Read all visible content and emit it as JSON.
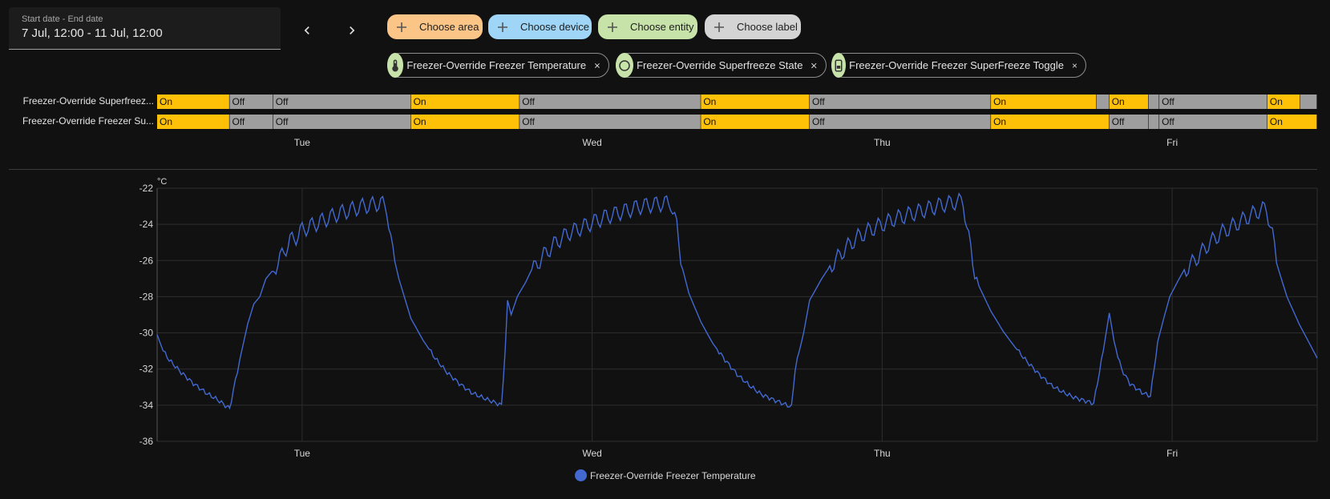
{
  "date_range": {
    "label": "Start date - End date",
    "value": "7 Jul, 12:00 - 11 Jul, 12:00"
  },
  "nav": {
    "prev_icon": "chevron-left-icon",
    "next_icon": "chevron-right-icon"
  },
  "target_chips": [
    {
      "label": "Choose area",
      "color": "#fbc588",
      "icon": "plus-icon"
    },
    {
      "label": "Choose device",
      "color": "#9fd5f7",
      "icon": "plus-icon"
    },
    {
      "label": "Choose entity",
      "color": "#c7e3a9",
      "icon": "plus-icon"
    },
    {
      "label": "Choose label",
      "color": "#d4d4d4",
      "icon": "plus-icon"
    }
  ],
  "entity_chips": [
    {
      "label": "Freezer-Override Freezer Temperature",
      "icon": "thermometer-icon"
    },
    {
      "label": "Freezer-Override Superfreeze State",
      "icon": "circle-outline-icon"
    },
    {
      "label": "Freezer-Override Freezer SuperFreeze Toggle",
      "icon": "phone-icon"
    }
  ],
  "colors": {
    "on": "#ffc107",
    "off": "#9e9e9e",
    "line": "#4369d1",
    "grid": "#2e2e2e"
  },
  "timeline": {
    "rows": [
      {
        "label": "Freezer-Override Superfreez...",
        "segments": [
          {
            "state": "On",
            "start": 0.0,
            "end": 0.0625
          },
          {
            "state": "Off",
            "start": 0.0625,
            "end": 0.1
          },
          {
            "state": "Off",
            "start": 0.1,
            "end": 0.2188
          },
          {
            "state": "On",
            "start": 0.2188,
            "end": 0.3125
          },
          {
            "state": "Off",
            "start": 0.3125,
            "end": 0.4688
          },
          {
            "state": "On",
            "start": 0.4688,
            "end": 0.5625
          },
          {
            "state": "Off",
            "start": 0.5625,
            "end": 0.7188
          },
          {
            "state": "On",
            "start": 0.7188,
            "end": 0.8098
          },
          {
            "state": "",
            "start": 0.8098,
            "end": 0.8208
          },
          {
            "state": "On",
            "start": 0.8208,
            "end": 0.8546
          },
          {
            "state": "",
            "start": 0.8546,
            "end": 0.8639
          },
          {
            "state": "Off",
            "start": 0.8639,
            "end": 0.9571
          },
          {
            "state": "On",
            "start": 0.9571,
            "end": 0.9854
          },
          {
            "state": "",
            "start": 0.9854,
            "end": 1.0
          }
        ]
      },
      {
        "label": "Freezer-Override Freezer Su...",
        "segments": [
          {
            "state": "On",
            "start": 0.0,
            "end": 0.0625
          },
          {
            "state": "Off",
            "start": 0.0625,
            "end": 0.1
          },
          {
            "state": "Off",
            "start": 0.1,
            "end": 0.2188
          },
          {
            "state": "On",
            "start": 0.2188,
            "end": 0.3125
          },
          {
            "state": "Off",
            "start": 0.3125,
            "end": 0.4688
          },
          {
            "state": "On",
            "start": 0.4688,
            "end": 0.5625
          },
          {
            "state": "Off",
            "start": 0.5625,
            "end": 0.7188
          },
          {
            "state": "On",
            "start": 0.7188,
            "end": 0.8208
          },
          {
            "state": "Off",
            "start": 0.8208,
            "end": 0.8546
          },
          {
            "state": "",
            "start": 0.8546,
            "end": 0.8639
          },
          {
            "state": "Off",
            "start": 0.8639,
            "end": 0.9571
          },
          {
            "state": "On",
            "start": 0.9571,
            "end": 1.0
          }
        ]
      }
    ],
    "ticks": [
      {
        "label": "Tue",
        "t": 0.125
      },
      {
        "label": "Wed",
        "t": 0.375
      },
      {
        "label": "Thu",
        "t": 0.625
      },
      {
        "label": "Fri",
        "t": 0.875
      }
    ]
  },
  "chart_data": {
    "type": "line",
    "title": "",
    "unit": "°C",
    "ylim": [
      -36,
      -22
    ],
    "yticks": [
      -22,
      -24,
      -26,
      -28,
      -30,
      -32,
      -34,
      -36
    ],
    "xlim": [
      0,
      96
    ],
    "x_unit": "hours since 7 Jul 12:00",
    "xticks": [
      {
        "label": "Tue",
        "x": 12
      },
      {
        "label": "Wed",
        "x": 36
      },
      {
        "label": "Thu",
        "x": 60
      },
      {
        "label": "Fri",
        "x": 84
      }
    ],
    "grid": true,
    "legend_position": "bottom",
    "series": [
      {
        "name": "Freezer-Override Freezer Temperature",
        "color": "#4369d1",
        "points": [
          [
            0,
            -30.1
          ],
          [
            0.5,
            -31.0
          ],
          [
            1,
            -31.5
          ],
          [
            2,
            -32.2
          ],
          [
            3,
            -32.8
          ],
          [
            4,
            -33.3
          ],
          [
            5,
            -33.7
          ],
          [
            5.8,
            -34.1
          ],
          [
            6.0,
            -34.2
          ],
          [
            6.3,
            -33.2
          ],
          [
            7,
            -31.0
          ],
          [
            7.5,
            -29.5
          ],
          [
            8,
            -28.4
          ],
          [
            8.5,
            -28.0
          ],
          [
            9,
            -27.0
          ],
          [
            9.5,
            -26.6
          ],
          [
            10,
            -26.0
          ],
          [
            10.5,
            -25.4
          ],
          [
            11,
            -24.8
          ],
          [
            11.5,
            -24.6
          ],
          [
            12,
            -24.2
          ],
          [
            13,
            -23.9
          ],
          [
            14,
            -23.6
          ],
          [
            15,
            -23.3
          ],
          [
            16,
            -23.1
          ],
          [
            17,
            -22.9
          ],
          [
            18,
            -22.8
          ],
          [
            18.5,
            -22.7
          ],
          [
            19,
            -23.0
          ],
          [
            19.5,
            -25.5
          ],
          [
            20,
            -27.0
          ],
          [
            21,
            -29.2
          ],
          [
            22,
            -30.4
          ],
          [
            23,
            -31.4
          ],
          [
            24,
            -32.2
          ],
          [
            25,
            -32.8
          ],
          [
            26,
            -33.3
          ],
          [
            27,
            -33.6
          ],
          [
            28.5,
            -34.0
          ],
          [
            28.8,
            -31.0
          ],
          [
            29.0,
            -28.2
          ],
          [
            29.3,
            -29.0
          ],
          [
            29.8,
            -28.0
          ],
          [
            30.5,
            -27.2
          ],
          [
            31,
            -26.5
          ],
          [
            32,
            -25.6
          ],
          [
            33,
            -24.9
          ],
          [
            34,
            -24.4
          ],
          [
            35,
            -24.1
          ],
          [
            36,
            -23.8
          ],
          [
            37,
            -23.5
          ],
          [
            38,
            -23.3
          ],
          [
            39,
            -23.1
          ],
          [
            40,
            -22.9
          ],
          [
            41,
            -22.8
          ],
          [
            42.5,
            -22.7
          ],
          [
            43,
            -24.0
          ],
          [
            43.5,
            -26.5
          ],
          [
            44,
            -27.8
          ],
          [
            45,
            -29.4
          ],
          [
            46,
            -30.6
          ],
          [
            47,
            -31.5
          ],
          [
            48,
            -32.3
          ],
          [
            49,
            -32.9
          ],
          [
            50,
            -33.4
          ],
          [
            51,
            -33.7
          ],
          [
            52.5,
            -34.1
          ],
          [
            52.8,
            -32.0
          ],
          [
            53.5,
            -30.0
          ],
          [
            54,
            -28.2
          ],
          [
            55,
            -27.0
          ],
          [
            56,
            -26.0
          ],
          [
            57,
            -25.2
          ],
          [
            58,
            -24.6
          ],
          [
            59,
            -24.2
          ],
          [
            60,
            -23.9
          ],
          [
            61,
            -23.6
          ],
          [
            62,
            -23.4
          ],
          [
            63,
            -23.2
          ],
          [
            64,
            -23.0
          ],
          [
            65,
            -22.8
          ],
          [
            66.7,
            -22.6
          ],
          [
            67,
            -24.0
          ],
          [
            67.5,
            -26.0
          ],
          [
            68,
            -27.4
          ],
          [
            69,
            -28.8
          ],
          [
            70,
            -29.9
          ],
          [
            71,
            -30.8
          ],
          [
            72,
            -31.6
          ],
          [
            73,
            -32.3
          ],
          [
            74,
            -32.9
          ],
          [
            75,
            -33.3
          ],
          [
            76,
            -33.6
          ],
          [
            77.5,
            -33.9
          ],
          [
            78.3,
            -31.0
          ],
          [
            78.8,
            -28.9
          ],
          [
            79.2,
            -30.5
          ],
          [
            79.8,
            -32.0
          ],
          [
            80.5,
            -32.8
          ],
          [
            81.5,
            -33.3
          ],
          [
            82.2,
            -33.5
          ],
          [
            82.8,
            -30.5
          ],
          [
            83.3,
            -29.2
          ],
          [
            83.8,
            -28.0
          ],
          [
            84.5,
            -27.1
          ],
          [
            85,
            -26.5
          ],
          [
            86,
            -25.8
          ],
          [
            87,
            -25.0
          ],
          [
            88,
            -24.4
          ],
          [
            89,
            -24.0
          ],
          [
            90,
            -23.6
          ],
          [
            91,
            -23.2
          ],
          [
            91.8,
            -23.0
          ],
          [
            92.3,
            -24.5
          ],
          [
            92.8,
            -26.5
          ],
          [
            93.5,
            -28.0
          ],
          [
            94.5,
            -29.5
          ],
          [
            95.3,
            -30.5
          ],
          [
            96,
            -31.4
          ]
        ]
      }
    ]
  }
}
